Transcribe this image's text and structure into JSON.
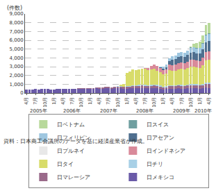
{
  "chart_data": {
    "type": "bar",
    "stacked": true,
    "grid": true,
    "y_label": "(件数)",
    "source": "資料：日本商工会議所のデータを基に経済産業省が作成。",
    "categories": [
      "4月",
      null,
      null,
      "7月",
      null,
      null,
      "10月",
      null,
      null,
      "1月",
      null,
      null,
      "4月",
      null,
      null,
      "7月",
      null,
      null,
      "10月",
      null,
      null,
      "1月",
      null,
      null,
      "4月",
      null,
      null,
      "7月",
      null,
      null,
      "10月",
      null,
      null,
      "1月",
      null,
      null,
      "4月",
      null,
      null,
      "7月",
      null,
      null,
      "10月",
      null,
      null,
      "1月",
      null,
      null,
      "4月",
      null,
      null,
      "7月",
      null,
      null,
      "10月",
      null,
      null,
      "1月",
      null,
      null,
      "4月"
    ],
    "year_labels": [
      {
        "text": "2005年",
        "at": 4
      },
      {
        "text": "2006年",
        "at": 15
      },
      {
        "text": "2007年",
        "at": 27
      },
      {
        "text": "2008年",
        "at": 39
      },
      {
        "text": "2009年",
        "at": 51
      },
      {
        "text": "2010年",
        "at": 58
      }
    ],
    "ylim": [
      0,
      9000
    ],
    "yticks": [
      0,
      {
        "value": 1000,
        "label": "1,000"
      },
      {
        "value": 2000,
        "label": "2,000"
      },
      {
        "value": 3000,
        "label": "3,000"
      },
      {
        "value": 4000,
        "label": "4,000"
      },
      {
        "value": 5000,
        "label": "5,000"
      },
      {
        "value": 6000,
        "label": "6,000"
      },
      {
        "value": 7000,
        "label": "7,000"
      },
      {
        "value": 8000,
        "label": "8,000"
      },
      {
        "value": 9000,
        "label": "9,000"
      }
    ],
    "series": [
      {
        "name": "日メキシコ",
        "color": "#6a5aa8",
        "values": [
          380,
          420,
          400,
          450,
          430,
          470,
          460,
          440,
          420,
          430,
          450,
          500,
          470,
          480,
          500,
          460,
          450,
          470,
          490,
          470,
          450,
          450,
          480,
          520,
          500,
          510,
          530,
          520,
          500,
          520,
          540,
          530,
          500,
          480,
          520,
          560,
          550,
          560,
          580,
          570,
          540,
          560,
          580,
          540,
          500,
          420,
          440,
          500,
          480,
          490,
          520,
          510,
          480,
          520,
          560,
          540,
          520,
          500,
          540,
          600,
          580
        ]
      },
      {
        "name": "日マレーシア",
        "color": "#9a6a8a",
        "values": [
          0,
          0,
          0,
          0,
          0,
          0,
          0,
          0,
          0,
          0,
          0,
          0,
          0,
          0,
          0,
          20,
          40,
          60,
          70,
          80,
          90,
          100,
          110,
          140,
          140,
          150,
          160,
          170,
          170,
          180,
          190,
          190,
          180,
          200,
          210,
          240,
          230,
          240,
          260,
          250,
          240,
          260,
          270,
          260,
          240,
          220,
          230,
          280,
          280,
          290,
          310,
          310,
          300,
          320,
          340,
          350,
          340,
          330,
          360,
          420,
          420
        ]
      },
      {
        "name": "日チリ",
        "color": "#a8d0e6",
        "values": [
          0,
          0,
          0,
          0,
          0,
          0,
          0,
          0,
          0,
          0,
          0,
          0,
          0,
          0,
          0,
          0,
          0,
          0,
          0,
          0,
          0,
          0,
          0,
          0,
          0,
          0,
          0,
          0,
          0,
          30,
          50,
          60,
          70,
          80,
          90,
          100,
          100,
          110,
          110,
          110,
          100,
          110,
          120,
          110,
          100,
          90,
          100,
          120,
          120,
          120,
          130,
          130,
          120,
          130,
          140,
          140,
          130,
          130,
          140,
          160,
          160
        ]
      },
      {
        "name": "日タイ",
        "color": "#d8dc6a",
        "values": [
          0,
          0,
          0,
          0,
          0,
          0,
          0,
          0,
          0,
          0,
          0,
          0,
          0,
          0,
          0,
          0,
          0,
          0,
          0,
          0,
          0,
          0,
          0,
          0,
          0,
          0,
          0,
          0,
          0,
          0,
          0,
          150,
          300,
          1550,
          1600,
          1750,
          1700,
          1750,
          1800,
          1800,
          1700,
          1750,
          1800,
          1650,
          1550,
          1400,
          1450,
          1700,
          1650,
          1650,
          1750,
          1800,
          1750,
          1850,
          1950,
          1950,
          1900,
          1900,
          2100,
          2500,
          2600
        ]
      },
      {
        "name": "日インドネシア",
        "color": "#d98a9a",
        "values": [
          0,
          0,
          0,
          0,
          0,
          0,
          0,
          0,
          0,
          0,
          0,
          0,
          0,
          0,
          0,
          0,
          0,
          0,
          0,
          0,
          0,
          0,
          0,
          0,
          0,
          0,
          0,
          0,
          0,
          0,
          0,
          0,
          0,
          0,
          0,
          0,
          0,
          0,
          0,
          150,
          300,
          400,
          500,
          500,
          480,
          450,
          480,
          600,
          650,
          650,
          700,
          720,
          720,
          760,
          800,
          820,
          800,
          800,
          880,
          1000,
          1000
        ]
      },
      {
        "name": "日ブルネイ",
        "color": "#e8e8e8",
        "values": [
          0,
          0,
          0,
          0,
          0,
          0,
          0,
          0,
          0,
          0,
          0,
          0,
          0,
          0,
          0,
          0,
          0,
          0,
          0,
          0,
          0,
          0,
          0,
          0,
          0,
          0,
          0,
          0,
          0,
          0,
          0,
          0,
          0,
          0,
          0,
          0,
          0,
          0,
          0,
          5,
          5,
          5,
          5,
          5,
          5,
          5,
          5,
          5,
          5,
          5,
          5,
          5,
          5,
          5,
          5,
          5,
          5,
          5,
          5,
          5,
          5
        ]
      },
      {
        "name": "日アセアン",
        "color": "#4f6f8f",
        "values": [
          0,
          0,
          0,
          0,
          0,
          0,
          0,
          0,
          0,
          0,
          0,
          0,
          0,
          0,
          0,
          0,
          0,
          0,
          0,
          0,
          0,
          0,
          0,
          0,
          0,
          0,
          0,
          0,
          0,
          0,
          0,
          0,
          0,
          0,
          0,
          0,
          0,
          0,
          0,
          0,
          0,
          0,
          0,
          0,
          50,
          150,
          250,
          400,
          600,
          650,
          700,
          720,
          700,
          750,
          800,
          820,
          800,
          850,
          950,
          1100,
          1150
        ]
      },
      {
        "name": "日フィリピン",
        "color": "#9fc7e0",
        "values": [
          0,
          0,
          0,
          0,
          0,
          0,
          0,
          0,
          0,
          0,
          0,
          0,
          0,
          0,
          0,
          0,
          0,
          0,
          0,
          0,
          0,
          0,
          0,
          0,
          0,
          0,
          0,
          0,
          0,
          0,
          0,
          0,
          0,
          0,
          0,
          0,
          0,
          0,
          0,
          0,
          0,
          0,
          0,
          0,
          100,
          250,
          300,
          350,
          400,
          420,
          450,
          480,
          480,
          500,
          540,
          560,
          560,
          580,
          650,
          760,
          800
        ]
      },
      {
        "name": "日スイス",
        "color": "#6f9fa0",
        "values": [
          0,
          0,
          0,
          0,
          0,
          0,
          0,
          0,
          0,
          0,
          0,
          0,
          0,
          0,
          0,
          0,
          0,
          0,
          0,
          0,
          0,
          0,
          0,
          0,
          0,
          0,
          0,
          0,
          0,
          0,
          0,
          0,
          0,
          0,
          0,
          0,
          0,
          0,
          0,
          0,
          0,
          0,
          0,
          0,
          0,
          0,
          0,
          0,
          0,
          0,
          0,
          0,
          0,
          20,
          40,
          50,
          50,
          50,
          60,
          70,
          70
        ]
      },
      {
        "name": "日ベトナム",
        "color": "#b8d99b",
        "values": [
          0,
          0,
          0,
          0,
          0,
          0,
          0,
          0,
          0,
          0,
          0,
          0,
          0,
          0,
          0,
          0,
          0,
          0,
          0,
          0,
          0,
          0,
          0,
          0,
          0,
          0,
          0,
          0,
          0,
          0,
          0,
          0,
          0,
          0,
          0,
          0,
          0,
          0,
          0,
          0,
          0,
          0,
          0,
          0,
          0,
          0,
          0,
          0,
          0,
          0,
          0,
          0,
          0,
          0,
          100,
          400,
          600,
          700,
          900,
          1100,
          1200
        ]
      }
    ]
  }
}
